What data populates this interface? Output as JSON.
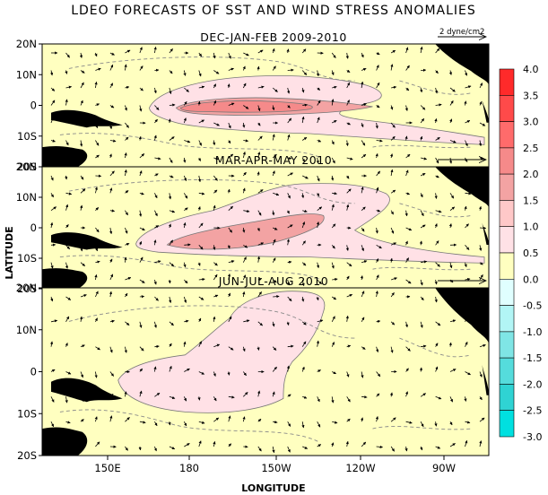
{
  "title": "LDEO FORECASTS OF SST AND WIND STRESS ANOMALIES",
  "xlabel": "LONGITUDE",
  "ylabel": "LATITUDE",
  "x_ticks": [
    "150E",
    "180",
    "150W",
    "120W",
    "90W"
  ],
  "y_ticks": [
    "20N",
    "10N",
    "0",
    "10S",
    "20S"
  ],
  "reference_vector_label": "2 dyne/cm2",
  "colors": {
    "background_anomaly": "#ffffc0",
    "land": "#000000",
    "contour_dashed": "#8a8a8a"
  },
  "colorbar": {
    "labels": [
      "4.0",
      "3.5",
      "3.0",
      "2.5",
      "2.0",
      "1.5",
      "1.0",
      "0.5",
      "0.0",
      "-0.5",
      "-1.0",
      "-1.5",
      "-2.0",
      "-2.5",
      "-3.0"
    ],
    "colors": [
      "#ff2a2a",
      "#ff4a4a",
      "#ff6b6b",
      "#f58a8a",
      "#f3a3a3",
      "#ffc8c8",
      "#ffe1e6",
      "#ffffc0",
      "#e0ffff",
      "#b2f5f5",
      "#7fe5e5",
      "#55dcdc",
      "#2fd3d3",
      "#00e0e0"
    ]
  },
  "panels": [
    {
      "title": "DEC-JAN-FEB 2009-2010",
      "shows_reference_label": true,
      "warm_max_anomaly_c": 2.0
    },
    {
      "title": "MAR-APR-MAY 2010",
      "shows_reference_label": false,
      "warm_max_anomaly_c": 1.5
    },
    {
      "title": "JUN-JUL-AUG 2010",
      "shows_reference_label": false,
      "warm_max_anomaly_c": 1.0
    }
  ]
}
